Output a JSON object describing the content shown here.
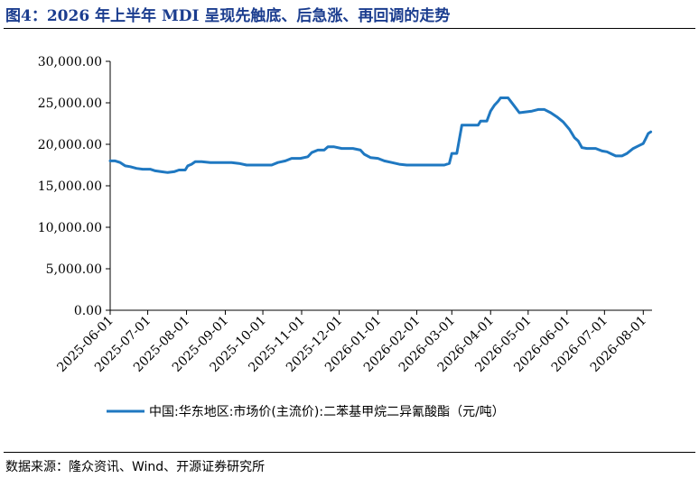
{
  "header": {
    "title": "图4：2026 年上半年 MDI 呈现先触底、后急涨、再回调的走势"
  },
  "footer": {
    "source": "数据来源：隆众资讯、Wind、开源证券研究所"
  },
  "chart_data": {
    "type": "line",
    "title": "",
    "xlabel": "",
    "ylabel": "",
    "ylim": [
      0,
      30000
    ],
    "yticks": [
      0,
      5000,
      10000,
      15000,
      20000,
      25000,
      30000
    ],
    "ytick_labels": [
      "0.00",
      "5,000.00",
      "10,000.00",
      "15,000.00",
      "20,000.00",
      "25,000.00",
      "30,000.00"
    ],
    "xlim": [
      "2025-06-01",
      "2026-08-08"
    ],
    "xtick_labels": [
      "2025-06-01",
      "2025-07-01",
      "2025-08-01",
      "2025-09-01",
      "2025-10-01",
      "2025-11-01",
      "2025-12-01",
      "2026-01-01",
      "2026-02-01",
      "2026-03-01",
      "2026-04-01",
      "2026-05-01",
      "2026-06-01",
      "2026-07-01",
      "2026-08-01"
    ],
    "grid": false,
    "legend_position": "bottom",
    "series": [
      {
        "name": "中国:华东地区:市场价(主流价):二苯基甲烷二异氰酸酯（元/吨）",
        "color": "#1f78c1",
        "points": [
          [
            "2025-06-01",
            18000
          ],
          [
            "2025-06-05",
            18000
          ],
          [
            "2025-06-09",
            17800
          ],
          [
            "2025-06-13",
            17400
          ],
          [
            "2025-06-17",
            17300
          ],
          [
            "2025-06-22",
            17100
          ],
          [
            "2025-06-27",
            17000
          ],
          [
            "2025-07-03",
            17000
          ],
          [
            "2025-07-07",
            16800
          ],
          [
            "2025-07-12",
            16700
          ],
          [
            "2025-07-17",
            16600
          ],
          [
            "2025-07-22",
            16700
          ],
          [
            "2025-07-26",
            16900
          ],
          [
            "2025-07-31",
            16900
          ],
          [
            "2025-08-02",
            17400
          ],
          [
            "2025-08-05",
            17600
          ],
          [
            "2025-08-08",
            17900
          ],
          [
            "2025-08-13",
            17900
          ],
          [
            "2025-08-20",
            17800
          ],
          [
            "2025-08-27",
            17800
          ],
          [
            "2025-09-06",
            17800
          ],
          [
            "2025-09-12",
            17700
          ],
          [
            "2025-09-18",
            17500
          ],
          [
            "2025-09-28",
            17500
          ],
          [
            "2025-10-08",
            17500
          ],
          [
            "2025-10-13",
            17800
          ],
          [
            "2025-10-19",
            18000
          ],
          [
            "2025-10-24",
            18300
          ],
          [
            "2025-10-31",
            18300
          ],
          [
            "2025-11-06",
            18500
          ],
          [
            "2025-11-09",
            19000
          ],
          [
            "2025-11-14",
            19300
          ],
          [
            "2025-11-19",
            19300
          ],
          [
            "2025-11-22",
            19700
          ],
          [
            "2025-11-27",
            19700
          ],
          [
            "2025-12-03",
            19500
          ],
          [
            "2025-12-12",
            19500
          ],
          [
            "2025-12-18",
            19300
          ],
          [
            "2025-12-21",
            18800
          ],
          [
            "2025-12-26",
            18400
          ],
          [
            "2026-01-01",
            18300
          ],
          [
            "2026-01-06",
            18000
          ],
          [
            "2026-01-12",
            17800
          ],
          [
            "2026-01-18",
            17600
          ],
          [
            "2026-01-24",
            17500
          ],
          [
            "2026-02-03",
            17500
          ],
          [
            "2026-02-13",
            17500
          ],
          [
            "2026-02-23",
            17500
          ],
          [
            "2026-02-27",
            17700
          ],
          [
            "2026-03-01",
            18900
          ],
          [
            "2026-03-05",
            18900
          ],
          [
            "2026-03-07",
            20600
          ],
          [
            "2026-03-09",
            22300
          ],
          [
            "2026-03-16",
            22300
          ],
          [
            "2026-03-22",
            22300
          ],
          [
            "2026-03-24",
            22800
          ],
          [
            "2026-03-29",
            22800
          ],
          [
            "2026-04-01",
            24000
          ],
          [
            "2026-04-04",
            24700
          ],
          [
            "2026-04-07",
            25200
          ],
          [
            "2026-04-09",
            25600
          ],
          [
            "2026-04-15",
            25600
          ],
          [
            "2026-04-17",
            25200
          ],
          [
            "2026-04-20",
            24600
          ],
          [
            "2026-04-24",
            23800
          ],
          [
            "2026-04-29",
            23900
          ],
          [
            "2026-05-04",
            24000
          ],
          [
            "2026-05-09",
            24200
          ],
          [
            "2026-05-14",
            24200
          ],
          [
            "2026-05-19",
            23800
          ],
          [
            "2026-05-24",
            23300
          ],
          [
            "2026-05-29",
            22700
          ],
          [
            "2026-06-03",
            21800
          ],
          [
            "2026-06-07",
            20800
          ],
          [
            "2026-06-10",
            20400
          ],
          [
            "2026-06-13",
            19600
          ],
          [
            "2026-06-17",
            19500
          ],
          [
            "2026-06-24",
            19500
          ],
          [
            "2026-06-29",
            19200
          ],
          [
            "2026-07-03",
            19100
          ],
          [
            "2026-07-07",
            18800
          ],
          [
            "2026-07-10",
            18600
          ],
          [
            "2026-07-15",
            18600
          ],
          [
            "2026-07-19",
            18900
          ],
          [
            "2026-07-24",
            19500
          ],
          [
            "2026-07-28",
            19800
          ],
          [
            "2026-08-01",
            20100
          ],
          [
            "2026-08-03",
            20700
          ],
          [
            "2026-08-05",
            21300
          ],
          [
            "2026-08-07",
            21500
          ]
        ]
      }
    ]
  }
}
